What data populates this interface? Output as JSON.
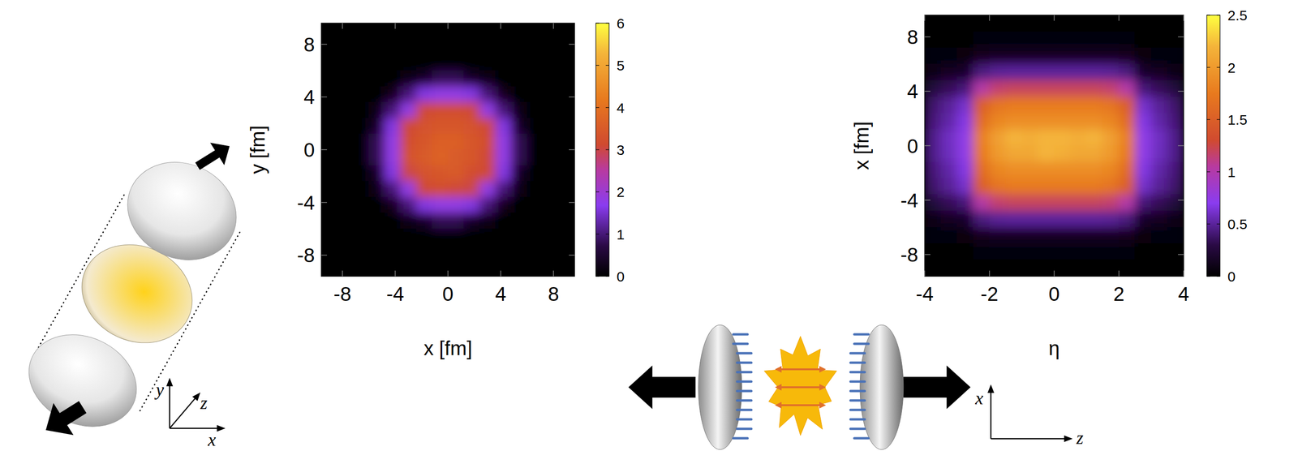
{
  "chart_data": [
    {
      "type": "heatmap",
      "xlabel": "x [fm]",
      "ylabel": "y [fm]",
      "x": [
        -9.0,
        -7.8,
        -6.6,
        -5.4,
        -4.2,
        -3.0,
        -1.8,
        -0.6,
        0.6,
        1.8,
        3.0,
        4.2,
        5.4,
        6.6,
        7.8,
        9.0
      ],
      "y": [
        9.0,
        7.8,
        6.6,
        5.4,
        4.2,
        3.0,
        1.8,
        0.6,
        -0.6,
        -1.8,
        -3.0,
        -4.2,
        -5.4,
        -6.6,
        -7.8,
        -9.0
      ],
      "cells": [
        [
          0,
          0,
          0,
          0,
          0,
          0,
          0,
          0,
          0,
          0,
          0,
          0,
          0,
          0,
          0,
          0
        ],
        [
          0,
          0,
          0,
          0,
          0,
          0,
          0,
          0,
          0,
          0,
          0,
          0,
          0,
          0,
          0,
          0
        ],
        [
          0,
          0,
          0,
          0,
          0,
          0,
          0,
          0.05,
          0.05,
          0,
          0,
          0,
          0,
          0,
          0,
          0
        ],
        [
          0,
          0,
          0,
          0,
          0,
          0.2,
          0.4,
          0.8,
          0.8,
          0.4,
          0.2,
          0,
          0,
          0,
          0,
          0
        ],
        [
          0,
          0,
          0,
          0,
          0.3,
          1.0,
          1.6,
          1.8,
          1.8,
          1.6,
          1.0,
          0.3,
          0,
          0,
          0,
          0
        ],
        [
          0,
          0,
          0,
          0.2,
          1.0,
          1.8,
          3.1,
          3.2,
          3.2,
          3.1,
          1.8,
          1.0,
          0.2,
          0,
          0,
          0
        ],
        [
          0,
          0,
          0,
          0.4,
          1.6,
          3.1,
          3.3,
          3.4,
          3.4,
          3.3,
          3.1,
          1.6,
          0.4,
          0,
          0,
          0
        ],
        [
          0,
          0,
          0.05,
          0.8,
          1.8,
          3.2,
          3.4,
          3.6,
          3.6,
          3.4,
          3.2,
          1.8,
          0.8,
          0.05,
          0,
          0
        ],
        [
          0,
          0,
          0.05,
          0.8,
          1.8,
          3.3,
          3.5,
          3.7,
          3.5,
          3.4,
          3.1,
          1.8,
          0.8,
          0.05,
          0,
          0
        ],
        [
          0,
          0,
          0,
          0.4,
          1.6,
          3.0,
          3.3,
          3.4,
          3.5,
          3.2,
          3.1,
          1.6,
          0.4,
          0,
          0,
          0
        ],
        [
          0,
          0,
          0,
          0.2,
          1.0,
          1.8,
          3.1,
          3.2,
          3.1,
          3.0,
          1.8,
          1.0,
          0.2,
          0,
          0,
          0
        ],
        [
          0,
          0,
          0,
          0,
          0.3,
          1.0,
          1.6,
          1.8,
          1.8,
          1.6,
          1.0,
          0.3,
          0,
          0,
          0,
          0
        ],
        [
          0,
          0,
          0,
          0,
          0,
          0.2,
          0.4,
          0.8,
          0.8,
          0.4,
          0.2,
          0,
          0,
          0,
          0,
          0
        ],
        [
          0,
          0,
          0,
          0,
          0,
          0,
          0,
          0.05,
          0.05,
          0,
          0,
          0,
          0,
          0,
          0,
          0
        ],
        [
          0,
          0,
          0,
          0,
          0,
          0,
          0,
          0,
          0,
          0,
          0,
          0,
          0,
          0,
          0,
          0
        ],
        [
          0,
          0,
          0,
          0,
          0,
          0,
          0,
          0,
          0,
          0,
          0,
          0,
          0,
          0,
          0,
          0
        ]
      ],
      "xlim": [
        -9.6,
        9.6
      ],
      "ylim": [
        -9.6,
        9.6
      ],
      "xticks": [
        -8,
        -4,
        0,
        4,
        8
      ],
      "yticks": [
        -8,
        -4,
        0,
        4,
        8
      ],
      "colorbar": {
        "range": [
          0,
          6
        ],
        "ticks": [
          0,
          1,
          2,
          3,
          4,
          5,
          6
        ]
      }
    },
    {
      "type": "heatmap",
      "xlabel": "η",
      "ylabel": "x [fm]",
      "x": [
        -3.75,
        -3.25,
        -2.75,
        -2.25,
        -1.75,
        -1.25,
        -0.75,
        -0.25,
        0.25,
        0.75,
        1.25,
        1.75,
        2.25,
        2.75,
        3.25,
        3.75
      ],
      "y": [
        9.0,
        7.8,
        6.6,
        5.4,
        4.2,
        3.0,
        1.8,
        0.6,
        -0.6,
        -1.8,
        -3.0,
        -4.2,
        -5.4,
        -6.6,
        -7.8,
        -9.0
      ],
      "cells": [
        [
          0,
          0,
          0,
          0,
          0,
          0,
          0,
          0,
          0,
          0,
          0,
          0,
          0,
          0,
          0,
          0
        ],
        [
          0.01,
          0.01,
          0.01,
          0.03,
          0.03,
          0.03,
          0.03,
          0.03,
          0.03,
          0.03,
          0.03,
          0.03,
          0.03,
          0.01,
          0.01,
          0.01
        ],
        [
          0.03,
          0.04,
          0.05,
          0.13,
          0.15,
          0.15,
          0.15,
          0.15,
          0.15,
          0.15,
          0.15,
          0.15,
          0.13,
          0.05,
          0.04,
          0.03
        ],
        [
          0.11,
          0.14,
          0.18,
          0.43,
          0.49,
          0.5,
          0.5,
          0.5,
          0.5,
          0.5,
          0.5,
          0.49,
          0.43,
          0.18,
          0.14,
          0.11
        ],
        [
          0.26,
          0.34,
          0.42,
          1.02,
          1.16,
          1.2,
          1.2,
          1.2,
          1.2,
          1.2,
          1.2,
          1.16,
          1.02,
          0.42,
          0.34,
          0.26
        ],
        [
          0.39,
          0.49,
          0.61,
          1.49,
          1.7,
          1.75,
          1.75,
          1.75,
          1.75,
          1.75,
          1.75,
          1.7,
          1.49,
          0.61,
          0.49,
          0.39
        ],
        [
          0.42,
          0.53,
          0.67,
          1.62,
          1.84,
          1.9,
          1.9,
          1.9,
          1.9,
          1.9,
          1.9,
          1.84,
          1.62,
          0.67,
          0.53,
          0.42
        ],
        [
          0.46,
          0.59,
          0.74,
          1.79,
          2.04,
          2.2,
          2.15,
          2.2,
          2.2,
          2.15,
          2.2,
          2.04,
          1.79,
          0.74,
          0.59,
          0.46
        ],
        [
          0.46,
          0.58,
          0.74,
          1.75,
          2.0,
          2.1,
          2.1,
          2.2,
          2.15,
          2.1,
          2.1,
          2.0,
          1.75,
          0.74,
          0.58,
          0.46
        ],
        [
          0.42,
          0.53,
          0.67,
          1.62,
          1.84,
          1.9,
          1.9,
          1.9,
          1.9,
          1.9,
          1.9,
          1.84,
          1.62,
          0.67,
          0.53,
          0.42
        ],
        [
          0.39,
          0.49,
          0.61,
          1.49,
          1.7,
          1.75,
          1.75,
          1.75,
          1.75,
          1.75,
          1.75,
          1.7,
          1.49,
          0.61,
          0.49,
          0.39
        ],
        [
          0.26,
          0.34,
          0.42,
          1.02,
          1.16,
          1.2,
          1.2,
          1.2,
          1.2,
          1.2,
          1.2,
          1.16,
          1.02,
          0.42,
          0.34,
          0.26
        ],
        [
          0.11,
          0.14,
          0.18,
          0.43,
          0.49,
          0.5,
          0.5,
          0.5,
          0.5,
          0.5,
          0.5,
          0.49,
          0.43,
          0.18,
          0.14,
          0.11
        ],
        [
          0.03,
          0.04,
          0.05,
          0.13,
          0.15,
          0.15,
          0.15,
          0.15,
          0.15,
          0.15,
          0.15,
          0.15,
          0.13,
          0.05,
          0.04,
          0.03
        ],
        [
          0.01,
          0.01,
          0.01,
          0.03,
          0.03,
          0.03,
          0.03,
          0.03,
          0.03,
          0.03,
          0.03,
          0.03,
          0.03,
          0.01,
          0.01,
          0.01
        ],
        [
          0,
          0,
          0,
          0,
          0,
          0,
          0,
          0,
          0,
          0,
          0,
          0,
          0,
          0,
          0,
          0
        ]
      ],
      "xlim": [
        -4,
        4
      ],
      "ylim": [
        -9.6,
        9.6
      ],
      "xticks": [
        -4,
        -2,
        0,
        2,
        4
      ],
      "yticks": [
        -8,
        -4,
        0,
        4,
        8
      ],
      "colorbar": {
        "range": [
          0,
          2.5
        ],
        "ticks": [
          0,
          0.5,
          1,
          1.5,
          2,
          2.5
        ]
      }
    }
  ],
  "illustrations": {
    "collision_axes": [
      "y",
      "z",
      "x"
    ],
    "expansion_axes": [
      "x",
      "z"
    ]
  }
}
